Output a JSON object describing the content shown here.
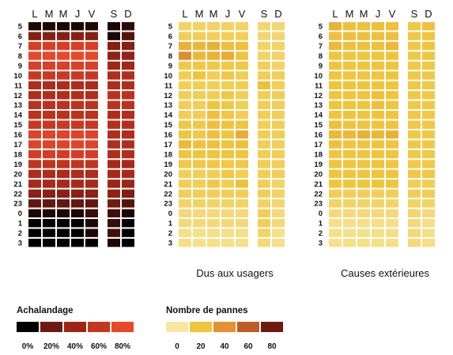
{
  "day_labels": [
    "L",
    "M",
    "M",
    "J",
    "V",
    "S",
    "D"
  ],
  "hour_labels": [
    "5",
    "6",
    "7",
    "8",
    "9",
    "10",
    "11",
    "12",
    "13",
    "14",
    "15",
    "16",
    "17",
    "18",
    "19",
    "20",
    "21",
    "22",
    "23",
    "0",
    "1",
    "2",
    "3"
  ],
  "legends": {
    "achalandage": {
      "title": "Achalandage",
      "tick_labels": [
        "0%",
        "20%",
        "40%",
        "60%",
        "80%"
      ],
      "colors": [
        "#000000",
        "#6e1a10",
        "#9e2516",
        "#c8351f",
        "#e8472a"
      ]
    },
    "pannes": {
      "title": "Nombre de pannes",
      "tick_labels": [
        "0",
        "20",
        "40",
        "60",
        "80"
      ],
      "colors": [
        "#f8e7a0",
        "#f0c53c",
        "#e3922e",
        "#c05a26",
        "#6e1a10"
      ]
    }
  },
  "chart_data": [
    {
      "type": "heatmap",
      "title": "",
      "measure": "achalandage_percent",
      "x": [
        "L",
        "M",
        "M",
        "J",
        "V",
        "S",
        "D"
      ],
      "y": [
        "5",
        "6",
        "7",
        "8",
        "9",
        "10",
        "11",
        "12",
        "13",
        "14",
        "15",
        "16",
        "17",
        "18",
        "19",
        "20",
        "21",
        "22",
        "23",
        "0",
        "1",
        "2",
        "3"
      ],
      "values": [
        [
          5,
          5,
          5,
          5,
          5,
          5,
          8
        ],
        [
          30,
          30,
          30,
          30,
          30,
          5,
          15
        ],
        [
          70,
          70,
          70,
          70,
          70,
          30,
          30
        ],
        [
          80,
          80,
          80,
          80,
          80,
          35,
          35
        ],
        [
          72,
          72,
          72,
          72,
          72,
          42,
          42
        ],
        [
          62,
          62,
          62,
          62,
          62,
          50,
          50
        ],
        [
          48,
          48,
          48,
          48,
          48,
          50,
          50
        ],
        [
          50,
          50,
          50,
          50,
          50,
          55,
          55
        ],
        [
          55,
          55,
          55,
          55,
          55,
          55,
          55
        ],
        [
          55,
          55,
          55,
          55,
          55,
          50,
          50
        ],
        [
          62,
          62,
          62,
          62,
          62,
          52,
          52
        ],
        [
          75,
          75,
          75,
          75,
          75,
          50,
          50
        ],
        [
          75,
          75,
          75,
          75,
          75,
          50,
          50
        ],
        [
          68,
          68,
          68,
          68,
          68,
          50,
          50
        ],
        [
          58,
          58,
          58,
          58,
          58,
          45,
          45
        ],
        [
          48,
          48,
          48,
          48,
          48,
          45,
          45
        ],
        [
          45,
          45,
          45,
          45,
          45,
          40,
          40
        ],
        [
          32,
          32,
          32,
          32,
          32,
          35,
          28
        ],
        [
          18,
          18,
          18,
          18,
          18,
          22,
          15
        ],
        [
          5,
          5,
          5,
          5,
          10,
          12,
          5
        ],
        [
          0,
          0,
          0,
          0,
          5,
          10,
          0
        ],
        [
          0,
          0,
          0,
          0,
          5,
          12,
          0
        ],
        [
          0,
          0,
          0,
          0,
          0,
          5,
          0
        ]
      ]
    },
    {
      "type": "heatmap",
      "title": "Dus aux usagers",
      "measure": "nombre_de_pannes",
      "x": [
        "L",
        "M",
        "M",
        "J",
        "V",
        "S",
        "D"
      ],
      "y": [
        "5",
        "6",
        "7",
        "8",
        "9",
        "10",
        "11",
        "12",
        "13",
        "14",
        "15",
        "16",
        "17",
        "18",
        "19",
        "20",
        "21",
        "22",
        "23",
        "0",
        "1",
        "2",
        "3"
      ],
      "values": [
        [
          12,
          12,
          12,
          12,
          12,
          10,
          10
        ],
        [
          15,
          15,
          15,
          15,
          15,
          10,
          10
        ],
        [
          28,
          25,
          28,
          22,
          22,
          12,
          12
        ],
        [
          42,
          25,
          28,
          30,
          20,
          12,
          12
        ],
        [
          18,
          18,
          18,
          18,
          18,
          14,
          12
        ],
        [
          15,
          20,
          15,
          18,
          15,
          15,
          15
        ],
        [
          15,
          15,
          15,
          15,
          15,
          22,
          15
        ],
        [
          15,
          15,
          15,
          18,
          15,
          15,
          15
        ],
        [
          15,
          15,
          20,
          18,
          15,
          15,
          15
        ],
        [
          15,
          15,
          22,
          18,
          15,
          15,
          15
        ],
        [
          18,
          18,
          22,
          20,
          20,
          15,
          15
        ],
        [
          20,
          18,
          22,
          20,
          30,
          15,
          15
        ],
        [
          25,
          22,
          22,
          20,
          22,
          15,
          15
        ],
        [
          20,
          20,
          20,
          20,
          20,
          15,
          15
        ],
        [
          18,
          18,
          18,
          18,
          18,
          15,
          15
        ],
        [
          15,
          15,
          15,
          18,
          15,
          15,
          15
        ],
        [
          15,
          15,
          18,
          15,
          22,
          15,
          12
        ],
        [
          15,
          15,
          15,
          15,
          15,
          15,
          12
        ],
        [
          12,
          12,
          12,
          12,
          12,
          12,
          10
        ],
        [
          8,
          8,
          8,
          8,
          8,
          15,
          8
        ],
        [
          8,
          8,
          8,
          8,
          8,
          15,
          8
        ],
        [
          5,
          5,
          5,
          5,
          5,
          12,
          5
        ],
        [
          5,
          5,
          5,
          5,
          5,
          8,
          5
        ]
      ]
    },
    {
      "type": "heatmap",
      "title": "Causes extérieures",
      "measure": "nombre_de_pannes",
      "x": [
        "L",
        "M",
        "M",
        "J",
        "V",
        "S",
        "D"
      ],
      "y": [
        "5",
        "6",
        "7",
        "8",
        "9",
        "10",
        "11",
        "12",
        "13",
        "14",
        "15",
        "16",
        "17",
        "18",
        "19",
        "20",
        "21",
        "22",
        "23",
        "0",
        "1",
        "2",
        "3"
      ],
      "values": [
        [
          28,
          22,
          22,
          22,
          22,
          18,
          22
        ],
        [
          22,
          22,
          22,
          22,
          22,
          18,
          20
        ],
        [
          25,
          22,
          22,
          22,
          25,
          18,
          20
        ],
        [
          20,
          20,
          20,
          20,
          20,
          18,
          20
        ],
        [
          20,
          20,
          20,
          20,
          20,
          18,
          18
        ],
        [
          20,
          20,
          20,
          20,
          20,
          18,
          18
        ],
        [
          20,
          20,
          20,
          20,
          20,
          18,
          18
        ],
        [
          20,
          20,
          20,
          22,
          20,
          18,
          18
        ],
        [
          20,
          20,
          20,
          22,
          20,
          18,
          18
        ],
        [
          20,
          20,
          20,
          20,
          20,
          18,
          18
        ],
        [
          22,
          20,
          20,
          20,
          20,
          18,
          18
        ],
        [
          25,
          25,
          28,
          25,
          28,
          18,
          18
        ],
        [
          22,
          20,
          20,
          20,
          20,
          18,
          18
        ],
        [
          20,
          20,
          20,
          20,
          20,
          18,
          18
        ],
        [
          20,
          20,
          20,
          20,
          20,
          18,
          18
        ],
        [
          20,
          20,
          20,
          20,
          20,
          18,
          18
        ],
        [
          20,
          20,
          20,
          20,
          20,
          15,
          15
        ],
        [
          15,
          15,
          15,
          15,
          15,
          15,
          15
        ],
        [
          12,
          12,
          12,
          12,
          12,
          12,
          12
        ],
        [
          8,
          8,
          8,
          8,
          8,
          10,
          8
        ],
        [
          5,
          5,
          5,
          5,
          5,
          8,
          5
        ],
        [
          5,
          5,
          5,
          5,
          5,
          8,
          5
        ],
        [
          5,
          5,
          5,
          5,
          5,
          8,
          5
        ]
      ]
    }
  ]
}
